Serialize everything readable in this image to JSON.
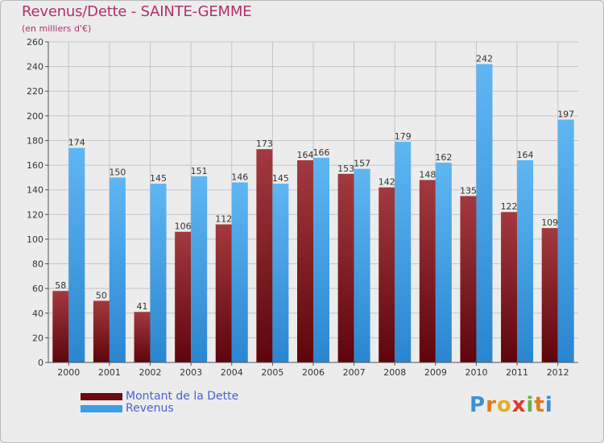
{
  "title": "Revenus/Dette - SAINTE-GEMME",
  "subtitle": "(en milliers d'€)",
  "colors": {
    "debt": "#7a0f17",
    "debt_light": "#a53a3f",
    "revenue": "#3b9ee6",
    "revenue_light": "#6ec0f4",
    "title": "#b0306a",
    "legend_text": "#4b60d6"
  },
  "chart_data": {
    "type": "bar",
    "title": "Revenus/Dette - SAINTE-GEMME",
    "ylabel": "(en milliers d'€)",
    "xlabel": "",
    "categories": [
      "2000",
      "2001",
      "2002",
      "2003",
      "2004",
      "2005",
      "2006",
      "2007",
      "2008",
      "2009",
      "2010",
      "2011",
      "2012"
    ],
    "series": [
      {
        "name": "Montant de la Dette",
        "values": [
          58,
          50,
          41,
          106,
          112,
          173,
          164,
          153,
          142,
          148,
          135,
          122,
          109
        ]
      },
      {
        "name": "Revenus",
        "values": [
          174,
          150,
          145,
          151,
          146,
          145,
          166,
          157,
          179,
          162,
          242,
          164,
          197
        ]
      }
    ],
    "ylim": [
      0,
      260
    ],
    "yticks": [
      0,
      20,
      40,
      60,
      80,
      100,
      120,
      140,
      160,
      180,
      200,
      220,
      240,
      260
    ],
    "grid": true,
    "legend": "bottom-left"
  },
  "logo": {
    "letters": [
      "P",
      "r",
      "o",
      "x",
      "i",
      "t",
      "i"
    ],
    "colors": [
      "#3d8fd6",
      "#e07a1f",
      "#e0b01f",
      "#e03a2a",
      "#6ab04c",
      "#e07a1f",
      "#3d8fd6"
    ]
  }
}
